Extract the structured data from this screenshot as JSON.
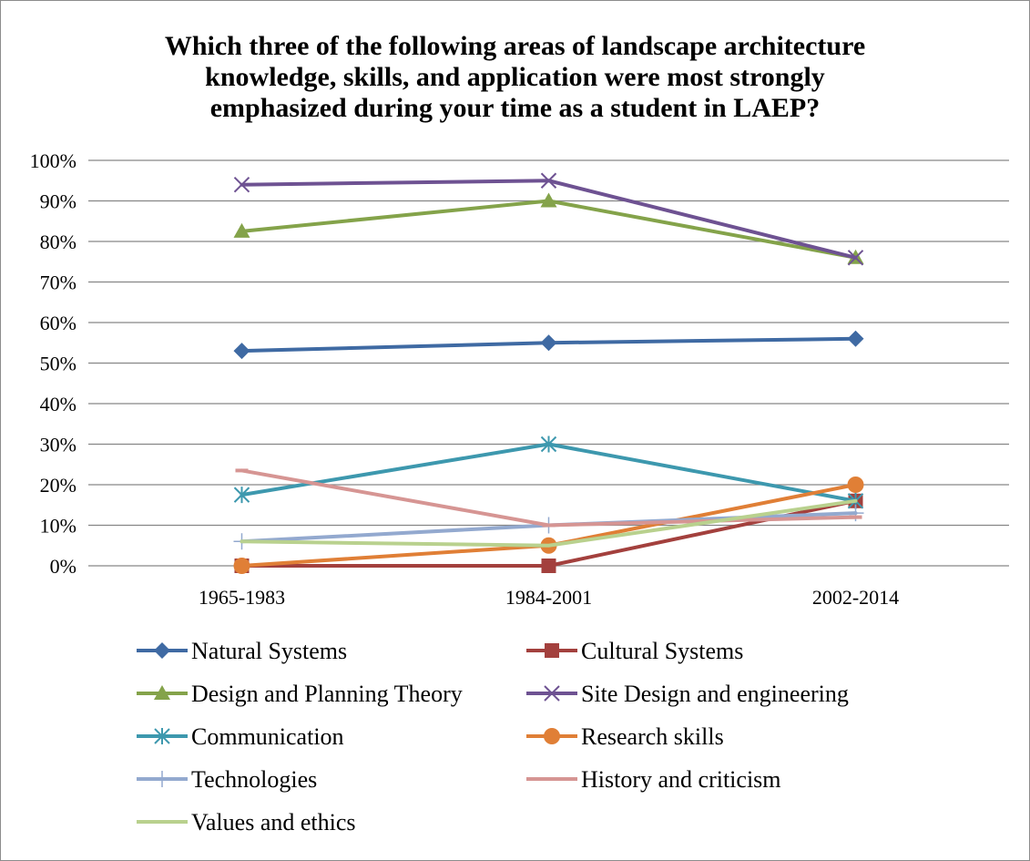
{
  "chart_data": {
    "type": "line",
    "title_lines": [
      "Which three of the following areas of landscape architecture",
      "knowledge, skills, and application were most strongly",
      "emphasized during your time as a student in LAEP?"
    ],
    "categories": [
      "1965-1983",
      "1984-2001",
      "2002-2014"
    ],
    "y_ticks": [
      "0%",
      "10%",
      "20%",
      "30%",
      "40%",
      "50%",
      "60%",
      "70%",
      "80%",
      "90%",
      "100%"
    ],
    "ylim": [
      0,
      100
    ],
    "y_unit": "%",
    "grid": true,
    "legend_position": "bottom",
    "series": [
      {
        "name": "Natural Systems",
        "values": [
          53,
          55,
          56
        ],
        "color": "#3f6aa3",
        "marker": "diamond"
      },
      {
        "name": "Cultural Systems",
        "values": [
          0,
          0,
          16
        ],
        "color": "#a3403d",
        "marker": "square"
      },
      {
        "name": "Design and Planning Theory",
        "values": [
          82.5,
          90,
          76
        ],
        "color": "#84a34a",
        "marker": "triangle"
      },
      {
        "name": "Site Design and engineering",
        "values": [
          94,
          95,
          76
        ],
        "color": "#6e5292",
        "marker": "x"
      },
      {
        "name": "Communication",
        "values": [
          17.5,
          30,
          16
        ],
        "color": "#3d98ae",
        "marker": "asterisk"
      },
      {
        "name": "Research skills",
        "values": [
          0,
          5,
          20
        ],
        "color": "#e07f36",
        "marker": "circle"
      },
      {
        "name": "Technologies",
        "values": [
          6,
          10,
          13
        ],
        "color": "#93a9cf",
        "marker": "plus"
      },
      {
        "name": "History and criticism",
        "values": [
          23.5,
          10,
          12
        ],
        "color": "#d69593",
        "marker": "dash"
      },
      {
        "name": "Values and ethics",
        "values": [
          6,
          5,
          16
        ],
        "color": "#b9d18e",
        "marker": "none"
      }
    ]
  }
}
